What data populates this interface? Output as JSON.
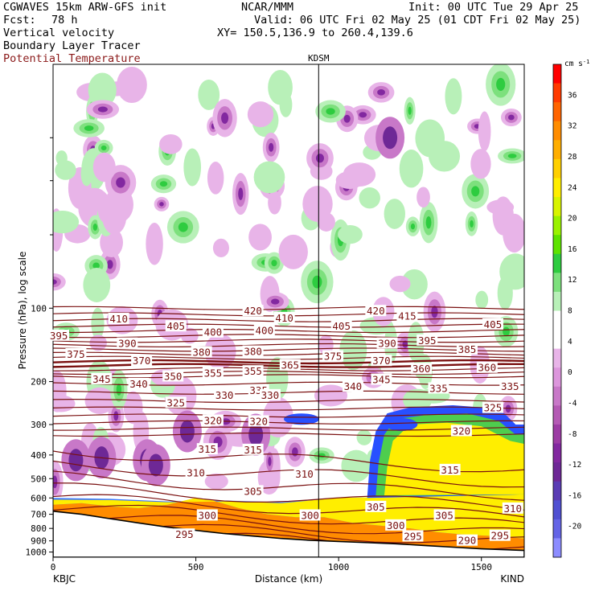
{
  "header": {
    "model": "CGWAVES 15km ARW-GFS init",
    "source": "NCAR/MMM",
    "init": "Init: 00 UTC Tue 29 Apr 25",
    "fcst_label": "Fcst:",
    "fcst_value": "78 h",
    "valid": "Valid: 06 UTC Fri 02 May 25 (01 CDT Fri 02 May 25)",
    "field1": "Vertical velocity",
    "field2": "Boundary Layer Tracer",
    "field3": "Potential Temperature",
    "xy": "XY= 150.5,136.9 to 260.4,139.6",
    "station_top": "KDSM"
  },
  "colors": {
    "theta_line": "#7a1010",
    "terrain": "#000000",
    "background": "#ffffff"
  },
  "chart_data": {
    "type": "heatmap",
    "xlabel": "Distance (km)",
    "ylabel": "Pressure (hPa), log scale",
    "xlim": [
      0,
      1650
    ],
    "ylim": [
      1050,
      10
    ],
    "x_ticks": [
      "0",
      "500",
      "1000",
      "1500"
    ],
    "x_tick_values": [
      0,
      500,
      1000,
      1500
    ],
    "y_ticks": [
      "100",
      "200",
      "300",
      "400",
      "500",
      "600",
      "700",
      "800",
      "900",
      "1000"
    ],
    "y_tick_values": [
      100,
      200,
      300,
      400,
      500,
      600,
      700,
      800,
      900,
      1000
    ],
    "endpoints": {
      "left": "KBJC",
      "right": "KIND"
    },
    "marker": {
      "label": "KDSM",
      "x": 930
    },
    "colorbar": {
      "unit": "cm s",
      "unit_exp": "-1",
      "labels": [
        "36",
        "32",
        "28",
        "24",
        "20",
        "16",
        "12",
        "8",
        "4",
        "0",
        "-4",
        "-8",
        "-12",
        "-16",
        "-20"
      ],
      "label_values": [
        36,
        32,
        28,
        24,
        20,
        16,
        12,
        8,
        4,
        0,
        -4,
        -8,
        -12,
        -16,
        -20
      ],
      "colors": [
        "#ff0000",
        "#ff3a00",
        "#ff6400",
        "#ff8c00",
        "#ffae00",
        "#ffd000",
        "#ffee00",
        "#d8f400",
        "#9af200",
        "#5ee300",
        "#2ecc40",
        "#7de07d",
        "#b8f0b8",
        "#ffffff",
        "#ffffff",
        "#e8b4e8",
        "#dc96dc",
        "#c878c8",
        "#b45ab4",
        "#9c3ca4",
        "#8228a0",
        "#6e2896",
        "#5a3cb4",
        "#5050d2",
        "#6464e6",
        "#8c8cff"
      ]
    },
    "theta_contours": [
      {
        "value": "295",
        "label_x": 460,
        "label_p": 850
      },
      {
        "value": "300",
        "label_x": 540,
        "label_p": 710
      },
      {
        "value": "305",
        "label_x": 700,
        "label_p": 565
      },
      {
        "value": "310",
        "label_x": 500,
        "label_p": 475
      },
      {
        "value": "315",
        "label_x": 540,
        "label_p": 380
      },
      {
        "value": "320",
        "label_x": 560,
        "label_p": 290
      },
      {
        "value": "325",
        "label_x": 430,
        "label_p": 245
      },
      {
        "value": "330",
        "label_x": 600,
        "label_p": 228
      },
      {
        "value": "335",
        "label_x": 720,
        "label_p": 218
      },
      {
        "value": "340",
        "label_x": 300,
        "label_p": 205
      },
      {
        "value": "345",
        "label_x": 170,
        "label_p": 196
      },
      {
        "value": "350",
        "label_x": 420,
        "label_p": 191
      },
      {
        "value": "355",
        "label_x": 560,
        "label_p": 185
      },
      {
        "value": "360",
        "label_x": 1290,
        "label_p": 178
      },
      {
        "value": "365",
        "label_x": 830,
        "label_p": 172
      },
      {
        "value": "370",
        "label_x": 310,
        "label_p": 165
      },
      {
        "value": "375",
        "label_x": 980,
        "label_p": 158
      },
      {
        "value": "380",
        "label_x": 520,
        "label_p": 152
      },
      {
        "value": "385",
        "label_x": 1450,
        "label_p": 148
      },
      {
        "value": "390",
        "label_x": 260,
        "label_p": 140
      },
      {
        "value": "395",
        "label_x": 20,
        "label_p": 130
      },
      {
        "value": "400",
        "label_x": 560,
        "label_p": 126
      },
      {
        "value": "405",
        "label_x": 430,
        "label_p": 119
      },
      {
        "value": "410",
        "label_x": 230,
        "label_p": 111
      },
      {
        "value": "415",
        "label_x": 1240,
        "label_p": 108
      },
      {
        "value": "420",
        "label_x": 700,
        "label_p": 103
      }
    ],
    "extra_theta_labels": [
      {
        "value": "290",
        "x": 1450,
        "p": 900
      },
      {
        "value": "295",
        "x": 1260,
        "p": 865
      },
      {
        "value": "295",
        "x": 1565,
        "p": 860
      },
      {
        "value": "300",
        "x": 1200,
        "p": 780
      },
      {
        "value": "300",
        "x": 900,
        "p": 710
      },
      {
        "value": "305",
        "x": 1370,
        "p": 710
      },
      {
        "value": "305",
        "x": 1130,
        "p": 655
      },
      {
        "value": "310",
        "x": 1610,
        "p": 665
      },
      {
        "value": "310",
        "x": 880,
        "p": 480
      },
      {
        "value": "315",
        "x": 1390,
        "p": 462
      },
      {
        "value": "315",
        "x": 700,
        "p": 382
      },
      {
        "value": "320",
        "x": 720,
        "p": 292
      },
      {
        "value": "320",
        "x": 1430,
        "p": 320
      },
      {
        "value": "325",
        "x": 1540,
        "p": 257
      },
      {
        "value": "330",
        "x": 760,
        "p": 228
      },
      {
        "value": "335",
        "x": 1350,
        "p": 214
      },
      {
        "value": "335",
        "x": 1600,
        "p": 210
      },
      {
        "value": "340",
        "x": 1050,
        "p": 210
      },
      {
        "value": "345",
        "x": 1150,
        "p": 197
      },
      {
        "value": "355",
        "x": 700,
        "p": 182
      },
      {
        "value": "360",
        "x": 1520,
        "p": 176
      },
      {
        "value": "370",
        "x": 1150,
        "p": 165
      },
      {
        "value": "375",
        "x": 80,
        "p": 155
      },
      {
        "value": "380",
        "x": 700,
        "p": 151
      },
      {
        "value": "390",
        "x": 1170,
        "p": 140
      },
      {
        "value": "395",
        "x": 1310,
        "p": 136
      },
      {
        "value": "400",
        "x": 740,
        "p": 124
      },
      {
        "value": "405",
        "x": 1010,
        "p": 119
      },
      {
        "value": "405",
        "x": 1540,
        "p": 117
      },
      {
        "value": "410",
        "x": 810,
        "p": 110
      },
      {
        "value": "420",
        "x": 1130,
        "p": 103
      }
    ]
  }
}
